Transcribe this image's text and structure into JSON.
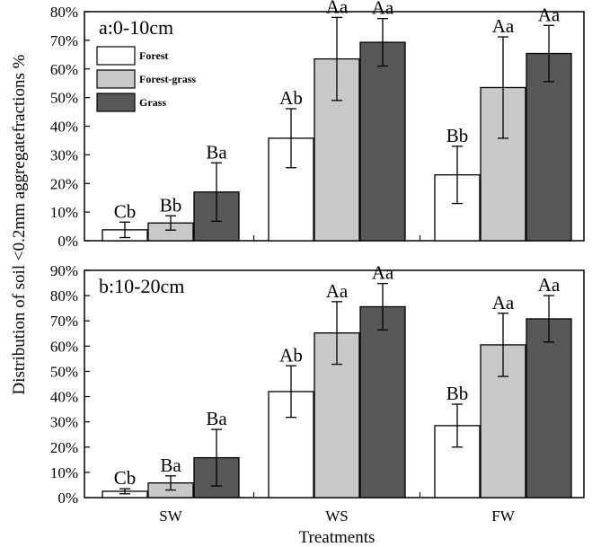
{
  "chart_data": {
    "type": "bar",
    "ylabel": "Distribution of soil <0.2mm aggregatefractions %",
    "xlabel": "Treatments",
    "categories": [
      "SW",
      "WS",
      "FW"
    ],
    "legend": {
      "placement": "top-left",
      "entries": [
        {
          "name": "Forest",
          "color": "#ffffff"
        },
        {
          "name": "Forest-grass",
          "color": "#c8c8c8"
        },
        {
          "name": "Grass",
          "color": "#585858"
        }
      ]
    },
    "panels": [
      {
        "title": "a:0-10cm",
        "ylim": [
          0,
          80
        ],
        "yticks": [
          0,
          10,
          20,
          30,
          40,
          50,
          60,
          70,
          80
        ],
        "ytick_labels": [
          "0%",
          "10%",
          "20%",
          "30%",
          "40%",
          "50%",
          "60%",
          "70%",
          "80%"
        ],
        "series": [
          {
            "name": "Forest",
            "values": [
              3.8,
              35.8,
              23.0
            ],
            "errors": [
              2.7,
              10.3,
              10.0
            ],
            "labels": [
              "Cb",
              "Ab",
              "Bb"
            ]
          },
          {
            "name": "Forest-grass",
            "values": [
              6.2,
              63.5,
              53.5
            ],
            "errors": [
              2.5,
              14.5,
              17.7
            ],
            "labels": [
              "Bb",
              "Aa",
              "Aa"
            ]
          },
          {
            "name": "Grass",
            "values": [
              17.0,
              69.3,
              65.4
            ],
            "errors": [
              10.2,
              8.3,
              9.8
            ],
            "labels": [
              "Ba",
              "Aa",
              "Aa"
            ]
          }
        ]
      },
      {
        "title": "b:10-20cm",
        "ylim": [
          0,
          90
        ],
        "yticks": [
          0,
          10,
          20,
          30,
          40,
          50,
          60,
          70,
          80,
          90
        ],
        "ytick_labels": [
          "0%",
          "10%",
          "20%",
          "30%",
          "40%",
          "50%",
          "60%",
          "70%",
          "80%",
          "90%"
        ],
        "series": [
          {
            "name": "Forest",
            "values": [
              2.5,
              42.0,
              28.5
            ],
            "errors": [
              1.0,
              10.2,
              8.5
            ],
            "labels": [
              "Cb",
              "Ab",
              "Bb"
            ]
          },
          {
            "name": "Forest-grass",
            "values": [
              5.8,
              65.2,
              60.5
            ],
            "errors": [
              2.8,
              12.4,
              12.5
            ],
            "labels": [
              "Ba",
              "Aa",
              "Aa"
            ]
          },
          {
            "name": "Grass",
            "values": [
              15.8,
              75.6,
              70.8
            ],
            "errors": [
              11.2,
              9.2,
              9.2
            ],
            "labels": [
              "Ba",
              "Aa",
              "Aa"
            ]
          }
        ]
      }
    ]
  }
}
